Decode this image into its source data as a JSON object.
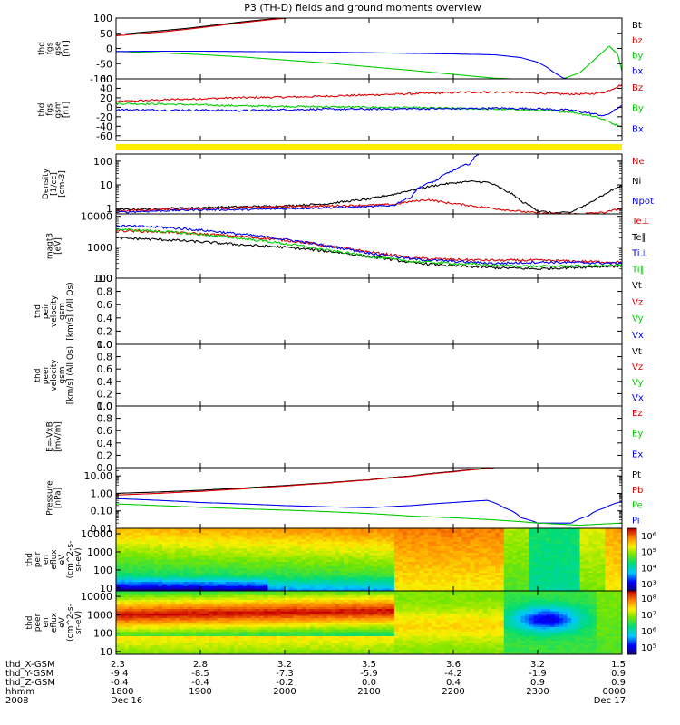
{
  "title": "P3 (TH-D) fields and ground moments overview",
  "colors": {
    "black": "#000000",
    "red": "#dd0000",
    "green": "#00cc00",
    "blue": "#0000ee",
    "yellow": "#ffee00",
    "bg": "#ffffff"
  },
  "chart_data": [
    {
      "type": "line",
      "id": "fgs_gse",
      "ylabel": [
        "thd",
        "fgs",
        "gse",
        "[nT]"
      ],
      "ylim": [
        -100,
        100
      ],
      "yticks": [
        100,
        50,
        0,
        -50,
        -100
      ],
      "ytick_labels": [
        "100",
        "50",
        "0",
        "-50",
        "-100"
      ],
      "legend": [
        {
          "label": "Bt",
          "color": "#000000"
        },
        {
          "label": "bz",
          "color": "#dd0000"
        },
        {
          "label": "by",
          "color": "#00cc00"
        },
        {
          "label": "bx",
          "color": "#0000ee"
        }
      ],
      "series": [
        {
          "color": "#000000",
          "x": [
            18.0,
            18.1,
            18.3,
            18.6,
            18.9,
            19.2,
            19.5,
            19.8,
            20.0,
            20.1
          ],
          "y": [
            46,
            48,
            53,
            60,
            68,
            78,
            88,
            96,
            100,
            102
          ]
        },
        {
          "color": "#dd0000",
          "x": [
            18.0,
            18.1,
            18.3,
            18.6,
            18.9,
            19.2,
            19.5,
            19.8,
            20.0,
            20.1
          ],
          "y": [
            42,
            44,
            49,
            56,
            65,
            75,
            85,
            94,
            99,
            102
          ]
        },
        {
          "color": "#00cc00",
          "x": [
            18.0,
            18.5,
            19.0,
            19.5,
            20.0,
            20.5,
            21.0,
            21.5,
            22.0,
            22.3,
            22.5,
            22.7,
            22.9,
            23.1,
            23.3,
            23.5,
            23.7,
            23.85,
            23.95,
            24.0
          ],
          "y": [
            -10,
            -14,
            -20,
            -28,
            -38,
            -48,
            -60,
            -72,
            -85,
            -93,
            -98,
            -100,
            -100,
            -100,
            -100,
            -80,
            -30,
            8,
            -20,
            -75
          ]
        },
        {
          "color": "#0000ee",
          "x": [
            18.0,
            18.5,
            19.0,
            19.5,
            20.0,
            20.5,
            21.0,
            21.5,
            22.0,
            22.5,
            22.8,
            23.0,
            23.1,
            23.2,
            23.3,
            23.35,
            23.4
          ],
          "y": [
            -10,
            -9,
            -9,
            -10,
            -11,
            -12,
            -14,
            -16,
            -18,
            -21,
            -30,
            -45,
            -60,
            -80,
            -97,
            -100,
            -100
          ]
        }
      ]
    },
    {
      "type": "line",
      "id": "fgs_gsm",
      "ylabel": [
        "thd",
        "fgs",
        "gsm",
        "[nT]"
      ],
      "ylim": [
        -70,
        60
      ],
      "yticks": [
        60,
        40,
        20,
        0,
        -20,
        -40,
        -60
      ],
      "ytick_labels": [
        "60",
        "40",
        "20",
        "0",
        "-20",
        "-40",
        "-60"
      ],
      "legend": [
        {
          "label": "Bz",
          "color": "#dd0000"
        },
        {
          "label": "By",
          "color": "#00cc00"
        },
        {
          "label": "Bx",
          "color": "#0000ee"
        }
      ],
      "series": [
        {
          "color": "#dd0000",
          "x": [
            18.0,
            18.3,
            18.6,
            19.0,
            19.4,
            19.8,
            20.2,
            20.6,
            21.0,
            21.4,
            21.8,
            22.2,
            22.6,
            23.0,
            23.3,
            23.6,
            23.8,
            24.0
          ],
          "y": [
            12,
            14,
            16,
            18,
            20,
            21,
            22,
            24,
            26,
            28,
            30,
            32,
            32,
            30,
            28,
            28,
            32,
            48
          ]
        },
        {
          "color": "#00cc00",
          "x": [
            18.0,
            18.5,
            19.0,
            19.5,
            20.0,
            20.5,
            21.0,
            21.5,
            22.0,
            22.5,
            23.0,
            23.4,
            23.7,
            23.9,
            24.0
          ],
          "y": [
            8,
            7,
            5,
            3,
            2,
            1,
            0,
            -1,
            -2,
            -4,
            -6,
            -10,
            -20,
            -35,
            -40
          ]
        },
        {
          "color": "#0000ee",
          "x": [
            18.0,
            18.5,
            19.0,
            19.5,
            20.0,
            20.5,
            21.0,
            21.5,
            22.0,
            22.5,
            23.0,
            23.4,
            23.6,
            23.8,
            23.9,
            24.0
          ],
          "y": [
            -5,
            -6,
            -6,
            -7,
            -5,
            -4,
            -4,
            -3,
            -3,
            -2,
            -3,
            -6,
            -12,
            -18,
            -8,
            5
          ]
        }
      ]
    },
    {
      "type": "line",
      "id": "density",
      "ylabel": [
        "Density",
        "[1/cc]",
        "[cm-3]"
      ],
      "ylim": [
        0.6,
        200
      ],
      "scale": "log",
      "yticks": [
        100,
        10,
        1
      ],
      "ytick_labels": [
        "100",
        "10",
        "1"
      ],
      "legend": [
        {
          "label": "Ne",
          "color": "#dd0000"
        },
        {
          "label": "Ni",
          "color": "#000000"
        },
        {
          "label": "Npot",
          "color": "#0000ee"
        }
      ],
      "series": [
        {
          "color": "#000000",
          "x": [
            18.0,
            18.5,
            19.0,
            19.5,
            20.0,
            20.5,
            21.0,
            21.3,
            21.6,
            21.9,
            22.2,
            22.4,
            22.6,
            22.8,
            23.0,
            23.2,
            23.4,
            23.6,
            23.8,
            24.0
          ],
          "y": [
            0.9,
            1.0,
            1.1,
            1.2,
            1.3,
            1.6,
            2.5,
            4.0,
            7.0,
            11.0,
            14.0,
            13.0,
            6.0,
            2.0,
            0.8,
            0.65,
            0.7,
            1.5,
            4.0,
            9.0
          ]
        },
        {
          "color": "#dd0000",
          "x": [
            18.0,
            18.5,
            19.0,
            19.5,
            20.0,
            20.5,
            21.0,
            21.3,
            21.5,
            21.7,
            21.9,
            22.1,
            22.3,
            22.6,
            22.9,
            23.2,
            23.5,
            23.8,
            24.0
          ],
          "y": [
            0.8,
            0.9,
            1.0,
            1.1,
            1.2,
            1.3,
            1.4,
            1.5,
            2.0,
            2.4,
            1.8,
            1.5,
            1.2,
            0.9,
            0.7,
            0.6,
            0.6,
            0.7,
            1.0
          ]
        },
        {
          "color": "#0000ee",
          "x": [
            18.0,
            18.5,
            19.0,
            19.5,
            20.0,
            20.5,
            21.0,
            21.3,
            21.5,
            21.6,
            21.8,
            22.0,
            22.2,
            22.3
          ],
          "y": [
            0.7,
            0.8,
            0.9,
            0.9,
            1.0,
            1.1,
            1.2,
            1.4,
            3.0,
            8.0,
            15.0,
            40.0,
            80.0,
            200
          ]
        }
      ]
    },
    {
      "type": "line",
      "id": "temperature",
      "ylabel": [
        "magt3",
        "[eV]"
      ],
      "ylim": [
        100,
        12000
      ],
      "scale": "log",
      "yticks": [
        10000,
        1000,
        100
      ],
      "ytick_labels": [
        "10000",
        "1000",
        "100"
      ],
      "legend": [
        {
          "label": "Te⊥",
          "color": "#dd0000"
        },
        {
          "label": "Te∥",
          "color": "#000000"
        },
        {
          "label": "Ti⊥",
          "color": "#0000ee"
        },
        {
          "label": "Ti∥",
          "color": "#00cc00"
        }
      ],
      "series": [
        {
          "color": "#dd0000",
          "x": [
            18.0,
            18.5,
            19.0,
            19.5,
            20.0,
            20.5,
            21.0,
            21.5,
            22.0,
            22.5,
            23.0,
            23.5,
            24.0
          ],
          "y": [
            3500,
            3200,
            2700,
            2200,
            1700,
            1100,
            700,
            450,
            400,
            380,
            380,
            350,
            330
          ]
        },
        {
          "color": "#000000",
          "x": [
            18.0,
            18.5,
            19.0,
            19.5,
            20.0,
            20.5,
            21.0,
            21.5,
            22.0,
            22.5,
            23.0,
            23.5,
            24.0
          ],
          "y": [
            2000,
            1800,
            1500,
            1200,
            1000,
            750,
            500,
            320,
            250,
            220,
            200,
            230,
            250
          ]
        },
        {
          "color": "#0000ee",
          "x": [
            18.0,
            18.5,
            19.0,
            19.5,
            20.0,
            20.5,
            21.0,
            21.5,
            22.0,
            22.5,
            23.0,
            23.5,
            24.0
          ],
          "y": [
            5000,
            4500,
            3600,
            2600,
            1800,
            1100,
            650,
            420,
            350,
            300,
            330,
            320,
            300
          ]
        },
        {
          "color": "#00cc00",
          "x": [
            18.0,
            18.5,
            19.0,
            19.5,
            20.0,
            20.5,
            21.0,
            21.5,
            22.0,
            22.5,
            23.0,
            23.5,
            24.0
          ],
          "y": [
            3800,
            3300,
            2600,
            1900,
            1300,
            800,
            500,
            350,
            300,
            260,
            240,
            250,
            260
          ]
        }
      ]
    },
    {
      "type": "line",
      "id": "peir_velocity",
      "ylabel": [
        "thd",
        "peir",
        "velocity",
        "gsm",
        "[km/s] (All Qs)"
      ],
      "ylim": [
        0,
        1
      ],
      "yticks": [
        1.0,
        0.8,
        0.6,
        0.4,
        0.2,
        0.0
      ],
      "ytick_labels": [
        "1.0",
        "0.8",
        "0.6",
        "0.4",
        "0.2",
        "0.0"
      ],
      "legend": [
        {
          "label": "Vt",
          "color": "#000000"
        },
        {
          "label": "Vz",
          "color": "#dd0000"
        },
        {
          "label": "Vy",
          "color": "#00cc00"
        },
        {
          "label": "Vx",
          "color": "#0000ee"
        }
      ],
      "series": []
    },
    {
      "type": "line",
      "id": "peer_velocity",
      "ylabel": [
        "thd",
        "peer",
        "velocity",
        "gsm",
        "[km/s] (All Qs)"
      ],
      "ylim": [
        0,
        1
      ],
      "yticks": [
        1.0,
        0.8,
        0.6,
        0.4,
        0.2,
        0.0
      ],
      "ytick_labels": [
        "1.0",
        "0.8",
        "0.6",
        "0.4",
        "0.2",
        "0.0"
      ],
      "legend": [
        {
          "label": "Vt",
          "color": "#000000"
        },
        {
          "label": "Vz",
          "color": "#dd0000"
        },
        {
          "label": "Vy",
          "color": "#00cc00"
        },
        {
          "label": "Vx",
          "color": "#0000ee"
        }
      ],
      "series": []
    },
    {
      "type": "line",
      "id": "efield",
      "ylabel": [
        "E=-VxB",
        "[mV/m]"
      ],
      "ylim": [
        0,
        1
      ],
      "yticks": [
        1.0,
        0.8,
        0.6,
        0.4,
        0.2,
        0.0
      ],
      "ytick_labels": [
        "1.0",
        "0.8",
        "0.6",
        "0.4",
        "0.2",
        "0.0"
      ],
      "legend": [
        {
          "label": "Ez",
          "color": "#dd0000"
        },
        {
          "label": "Ey",
          "color": "#00cc00"
        },
        {
          "label": "Ex",
          "color": "#0000ee"
        }
      ],
      "series": []
    },
    {
      "type": "line",
      "id": "pressure",
      "ylabel": [
        "Pressure",
        "[nPa]"
      ],
      "ylim": [
        0.01,
        30
      ],
      "scale": "log",
      "yticks": [
        10,
        1,
        0.1,
        0.01
      ],
      "ytick_labels": [
        "10.00",
        "1.00",
        "0.10",
        "0.01"
      ],
      "legend": [
        {
          "label": "Pt",
          "color": "#000000"
        },
        {
          "label": "Pb",
          "color": "#dd0000"
        },
        {
          "label": "Pe",
          "color": "#00cc00"
        },
        {
          "label": "Pi",
          "color": "#0000ee"
        }
      ],
      "series": [
        {
          "color": "#000000",
          "x": [
            18.0,
            18.5,
            19.0,
            19.5,
            20.0,
            20.5,
            21.0,
            21.5,
            22.0,
            22.3,
            22.5
          ],
          "y": [
            1.0,
            1.2,
            1.5,
            2.0,
            2.8,
            4.0,
            6.0,
            10.0,
            18.0,
            25.0,
            30.0
          ]
        },
        {
          "color": "#dd0000",
          "x": [
            18.0,
            18.5,
            19.0,
            19.5,
            20.0,
            20.5,
            21.0,
            21.5,
            22.0,
            22.3,
            22.5
          ],
          "y": [
            0.8,
            1.0,
            1.3,
            1.8,
            2.6,
            3.8,
            5.8,
            9.5,
            17.0,
            24.0,
            30.0
          ]
        },
        {
          "color": "#0000ee",
          "x": [
            18.0,
            18.5,
            19.0,
            19.5,
            20.0,
            20.5,
            21.0,
            21.5,
            22.0,
            22.4,
            22.6,
            22.8,
            23.0,
            23.2,
            23.4,
            23.6,
            23.8,
            24.0
          ],
          "y": [
            0.5,
            0.4,
            0.3,
            0.25,
            0.2,
            0.17,
            0.15,
            0.2,
            0.3,
            0.4,
            0.15,
            0.04,
            0.02,
            0.02,
            0.02,
            0.05,
            0.15,
            0.35
          ]
        },
        {
          "color": "#00cc00",
          "x": [
            18.0,
            18.5,
            19.0,
            19.5,
            20.0,
            20.5,
            21.0,
            21.5,
            22.0,
            22.5,
            23.0,
            23.5,
            24.0
          ],
          "y": [
            0.25,
            0.2,
            0.16,
            0.13,
            0.11,
            0.09,
            0.07,
            0.05,
            0.04,
            0.03,
            0.02,
            0.015,
            0.02
          ]
        }
      ]
    },
    {
      "type": "heatmap",
      "id": "peir_eflux",
      "ylabel": [
        "thd",
        "peir",
        "en",
        "eflux",
        "eV",
        "(cm^2-s-",
        "sr-eV)"
      ],
      "yticks": [
        10000,
        1000,
        100,
        10
      ],
      "ytick_labels": [
        "10000",
        "1000",
        "100",
        "10"
      ],
      "colorbar_labels": [
        "10⁶",
        "10⁵",
        "10⁴",
        "10³"
      ]
    },
    {
      "type": "heatmap",
      "id": "peer_eflux",
      "ylabel": [
        "thd",
        "peer",
        "en",
        "eflux",
        "eV",
        "(cm^2-s-",
        "sr-eV)"
      ],
      "yticks": [
        10000,
        1000,
        100,
        10
      ],
      "ytick_labels": [
        "10000",
        "1000",
        "100",
        "10"
      ],
      "colorbar_labels": [
        "10⁸",
        "10⁷",
        "10⁶",
        "10⁵"
      ]
    }
  ],
  "ephemeris": {
    "row_labels": [
      "thd_X-GSM",
      "thd_Y-GSM",
      "thd_Z-GSM",
      "hhmm",
      "2008"
    ],
    "columns": [
      {
        "values": [
          "2.3",
          "-9.4",
          "-0.4",
          "1800",
          "Dec 16"
        ]
      },
      {
        "values": [
          "2.8",
          "-8.5",
          "-0.4",
          "1900",
          ""
        ]
      },
      {
        "values": [
          "3.2",
          "-7.3",
          "-0.2",
          "2000",
          ""
        ]
      },
      {
        "values": [
          "3.5",
          "-5.9",
          "0.0",
          "2100",
          ""
        ]
      },
      {
        "values": [
          "3.6",
          "-4.2",
          "0.4",
          "2200",
          ""
        ]
      },
      {
        "values": [
          "3.2",
          "-1.9",
          "0.9",
          "2300",
          ""
        ]
      },
      {
        "values": [
          "1.5",
          "0.9",
          "0.9",
          "0000",
          "Dec 17"
        ]
      }
    ]
  }
}
